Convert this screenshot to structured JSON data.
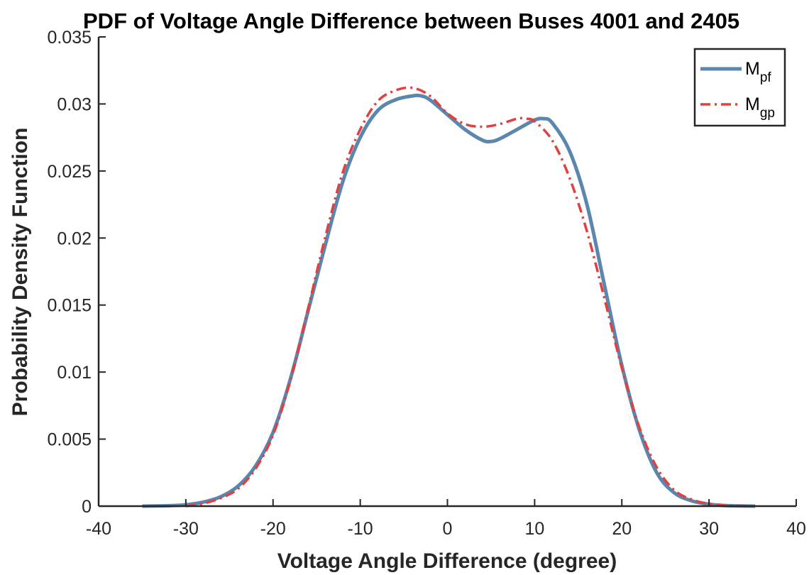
{
  "chart_data": {
    "type": "line",
    "title": "PDF of Voltage Angle Difference between Buses 4001 and 2405",
    "xlabel": "Voltage Angle Difference (degree)",
    "ylabel": "Probability Density Function",
    "xlim": [
      -40,
      40
    ],
    "ylim": [
      0,
      0.035
    ],
    "xticks": [
      -40,
      -30,
      -20,
      -10,
      0,
      10,
      20,
      30,
      40
    ],
    "xtick_labels": [
      "-40",
      "-30",
      "-20",
      "-10",
      "0",
      "10",
      "20",
      "30",
      "40"
    ],
    "yticks": [
      0,
      0.005,
      0.01,
      0.015,
      0.02,
      0.025,
      0.03,
      0.035
    ],
    "ytick_labels": [
      "0",
      "0.005",
      "0.01",
      "0.015",
      "0.02",
      "0.025",
      "0.03",
      "0.035"
    ],
    "grid": false,
    "legend_position": "top-right",
    "series": [
      {
        "name": "M_pf",
        "legend_main": "M",
        "legend_sub": "pf",
        "color": "#5b86ae",
        "style": "solid",
        "x": [
          -35,
          -32,
          -30,
          -28,
          -26,
          -24,
          -22,
          -20,
          -18,
          -16,
          -14,
          -12,
          -10,
          -8,
          -6,
          -4,
          -3,
          -2,
          0,
          2,
          4,
          5,
          6,
          8,
          10,
          11,
          12,
          14,
          16,
          18,
          20,
          22,
          24,
          26,
          28,
          30,
          32,
          35.3
        ],
        "y": [
          0,
          3e-05,
          0.0001,
          0.0003,
          0.0007,
          0.0015,
          0.003,
          0.0055,
          0.0095,
          0.0145,
          0.0195,
          0.0242,
          0.0275,
          0.0295,
          0.0303,
          0.0306,
          0.0306,
          0.0303,
          0.0292,
          0.0281,
          0.0273,
          0.0272,
          0.0274,
          0.0281,
          0.0288,
          0.0289,
          0.0286,
          0.0265,
          0.0225,
          0.0165,
          0.0105,
          0.0057,
          0.0025,
          0.001,
          0.0004,
          0.00015,
          4e-05,
          0
        ]
      },
      {
        "name": "M_gp",
        "legend_main": "M",
        "legend_sub": "gp",
        "color": "#e0403e",
        "style": "dash-dot",
        "x": [
          -30,
          -28,
          -26,
          -24,
          -22,
          -20,
          -18,
          -16,
          -14,
          -12,
          -10,
          -8,
          -6,
          -4,
          -2,
          0,
          2,
          4,
          6,
          8,
          9,
          10,
          12,
          14,
          16,
          18,
          20,
          22,
          24,
          26,
          28,
          30,
          32,
          35
        ],
        "y": [
          0,
          0.0002,
          0.0006,
          0.0013,
          0.0028,
          0.0053,
          0.0094,
          0.0147,
          0.0201,
          0.0249,
          0.0281,
          0.0302,
          0.031,
          0.0312,
          0.0306,
          0.0293,
          0.0285,
          0.0283,
          0.0285,
          0.0289,
          0.0289,
          0.0287,
          0.0273,
          0.0245,
          0.0205,
          0.0155,
          0.0103,
          0.0059,
          0.0029,
          0.0012,
          0.0005,
          0.00018,
          6e-05,
          0
        ]
      }
    ]
  }
}
